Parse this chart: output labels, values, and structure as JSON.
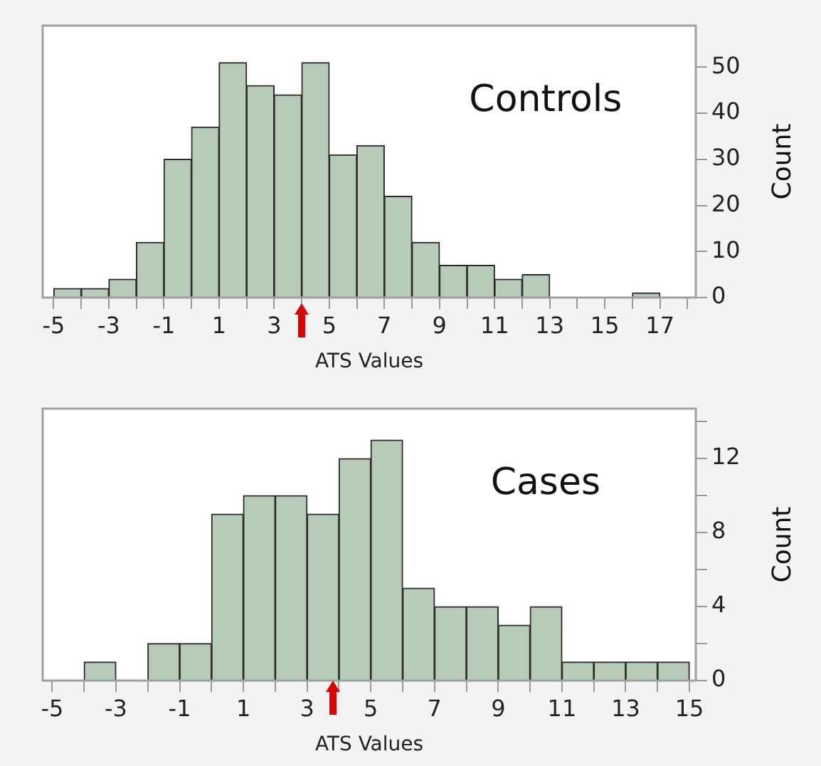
{
  "chart_data": [
    {
      "type": "histogram",
      "title": "Controls",
      "xlabel": "ATS Values",
      "ylabel": "Count",
      "color": "#b7cbb9",
      "bins": [
        -5,
        -4,
        -3,
        -2,
        -1,
        0,
        1,
        2,
        3,
        4,
        5,
        6,
        7,
        8,
        9,
        10,
        11,
        12,
        13,
        14,
        15,
        16,
        17
      ],
      "values": [
        2,
        2,
        4,
        12,
        30,
        37,
        51,
        46,
        44,
        51,
        31,
        33,
        22,
        12,
        7,
        7,
        4,
        5,
        0,
        0,
        0,
        1
      ],
      "xlim": [
        -5.4,
        18.3
      ],
      "xticks": [
        -5,
        {
          "value": -4,
          "label": null
        },
        -3,
        {
          "value": -2,
          "label": null
        },
        -1,
        {
          "value": 0,
          "label": null
        },
        1,
        {
          "value": 2,
          "label": null
        },
        3,
        {
          "value": 4,
          "label": null
        },
        5,
        {
          "value": 6,
          "label": null
        },
        7,
        {
          "value": 8,
          "label": null
        },
        9,
        {
          "value": 10,
          "label": null
        },
        11,
        {
          "value": 12,
          "label": null
        },
        13,
        {
          "value": 14,
          "label": null
        },
        15,
        {
          "value": 16,
          "label": null
        },
        17,
        {
          "value": 18,
          "label": null
        }
      ],
      "ylim": [
        0,
        59
      ],
      "yticks": [
        0,
        10,
        20,
        30,
        40,
        50
      ]
    },
    {
      "type": "histogram",
      "title": "Cases",
      "xlabel": "ATS Values",
      "ylabel": "Count",
      "color": "#b7cbb9",
      "bins": [
        -5,
        -4,
        -3,
        -2,
        -1,
        0,
        1,
        2,
        3,
        4,
        5,
        6,
        7,
        8,
        9,
        10,
        11,
        12,
        13,
        14,
        15
      ],
      "values": [
        0,
        1,
        0,
        2,
        2,
        9,
        10,
        10,
        9,
        12,
        13,
        5,
        4,
        4,
        3,
        4,
        1,
        1,
        1,
        1
      ],
      "xlim": [
        -5.3,
        15.2
      ],
      "xticks": [
        -5,
        {
          "value": -4,
          "label": null
        },
        -3,
        {
          "value": -2,
          "label": null
        },
        -1,
        {
          "value": 0,
          "label": null
        },
        1,
        {
          "value": 2,
          "label": null
        },
        3,
        {
          "value": 4,
          "label": null
        },
        5,
        {
          "value": 6,
          "label": null
        },
        7,
        {
          "value": 8,
          "label": null
        },
        9,
        {
          "value": 10,
          "label": null
        },
        11,
        {
          "value": 12,
          "label": null
        },
        13,
        {
          "value": 14,
          "label": null
        },
        15
      ],
      "ylim": [
        0,
        14.7
      ],
      "yticks": [
        0,
        {
          "value": 2,
          "label": null
        },
        4,
        {
          "value": 6,
          "label": null
        },
        8,
        {
          "value": 10,
          "label": null
        },
        12,
        {
          "value": 14,
          "label": null
        }
      ]
    }
  ]
}
